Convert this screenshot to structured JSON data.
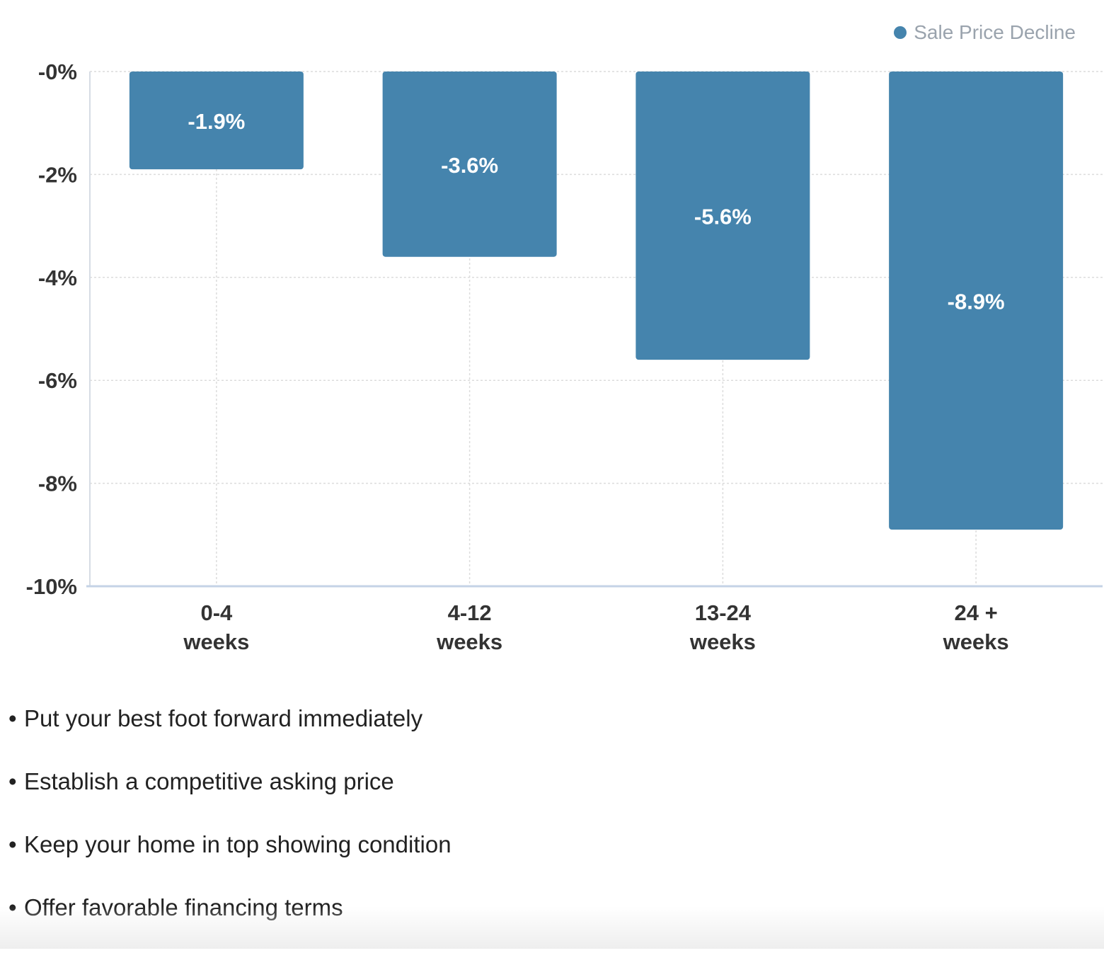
{
  "chart_data": {
    "type": "bar",
    "categories": [
      [
        "0-4",
        "weeks"
      ],
      [
        "4-12",
        "weeks"
      ],
      [
        "13-24",
        "weeks"
      ],
      [
        "24 +",
        "weeks"
      ]
    ],
    "series": [
      {
        "name": "Sale Price Decline",
        "values": [
          -1.9,
          -3.6,
          -5.6,
          -8.9
        ]
      }
    ],
    "data_labels": [
      "-1.9%",
      "-3.6%",
      "-5.6%",
      "-8.9%"
    ],
    "y_ticks": [
      0,
      -2,
      -4,
      -6,
      -8,
      -10
    ],
    "y_tick_labels": [
      "-0%",
      "-2%",
      "-4%",
      "-6%",
      "-8%",
      "-10%"
    ],
    "ylim": [
      -10,
      0
    ],
    "grid": true,
    "legend_position": "top-right",
    "bar_color": "#4584ad",
    "title": "",
    "xlabel": "",
    "ylabel": ""
  },
  "legend": {
    "label": "Sale Price Decline"
  },
  "tips": [
    "Put your best foot forward immediately",
    "Establish a competitive asking price",
    "Keep your home in top showing condition",
    "Offer favorable financing terms"
  ],
  "bullet_symbol": "•"
}
